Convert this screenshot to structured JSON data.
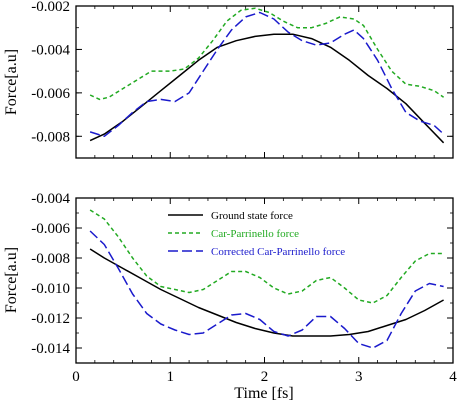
{
  "chart_data": [
    {
      "type": "line",
      "ylabel": "Force[a.u]",
      "xlim": [
        0,
        4
      ],
      "ylim": [
        -0.009,
        -0.002
      ],
      "yticks": [
        -0.008,
        -0.006,
        -0.004,
        -0.002
      ],
      "yticklabels": [
        "-0.008",
        "-0.006",
        "-0.004",
        "-0.002"
      ],
      "series": [
        {
          "key": "ground",
          "color": "#000000",
          "style": "solid",
          "x": [
            0.15,
            0.3,
            0.5,
            0.7,
            0.9,
            1.1,
            1.3,
            1.5,
            1.7,
            1.9,
            2.1,
            2.3,
            2.5,
            2.7,
            2.9,
            3.1,
            3.3,
            3.5,
            3.7,
            3.9
          ],
          "y": [
            -0.0082,
            -0.0079,
            -0.0073,
            -0.0066,
            -0.0059,
            -0.0052,
            -0.0045,
            -0.0039,
            -0.0036,
            -0.0034,
            -0.0033,
            -0.0033,
            -0.0035,
            -0.0039,
            -0.0045,
            -0.0052,
            -0.0058,
            -0.0065,
            -0.0074,
            -0.0083
          ]
        },
        {
          "key": "cp",
          "color": "#22aa22",
          "style": "short-dash",
          "x": [
            0.15,
            0.25,
            0.35,
            0.5,
            0.65,
            0.8,
            1.0,
            1.15,
            1.3,
            1.45,
            1.6,
            1.75,
            1.9,
            2.05,
            2.2,
            2.35,
            2.5,
            2.65,
            2.8,
            2.95,
            3.05,
            3.2,
            3.35,
            3.5,
            3.65,
            3.8,
            3.9
          ],
          "y": [
            -0.0061,
            -0.0063,
            -0.0062,
            -0.0058,
            -0.0054,
            -0.005,
            -0.005,
            -0.0049,
            -0.0044,
            -0.0036,
            -0.0027,
            -0.0022,
            -0.0021,
            -0.0023,
            -0.0027,
            -0.003,
            -0.003,
            -0.0028,
            -0.0025,
            -0.0026,
            -0.0029,
            -0.004,
            -0.005,
            -0.0056,
            -0.0057,
            -0.0059,
            -0.0062
          ]
        },
        {
          "key": "corr",
          "color": "#1a1acc",
          "style": "long-dash",
          "x": [
            0.15,
            0.3,
            0.45,
            0.6,
            0.75,
            0.9,
            1.05,
            1.2,
            1.35,
            1.5,
            1.65,
            1.8,
            1.95,
            2.1,
            2.25,
            2.4,
            2.55,
            2.7,
            2.85,
            2.95,
            3.05,
            3.2,
            3.35,
            3.5,
            3.65,
            3.8,
            3.9
          ],
          "y": [
            -0.0078,
            -0.008,
            -0.0075,
            -0.0069,
            -0.0064,
            -0.0063,
            -0.0064,
            -0.006,
            -0.005,
            -0.004,
            -0.0031,
            -0.0025,
            -0.0023,
            -0.0026,
            -0.0032,
            -0.0036,
            -0.0038,
            -0.0037,
            -0.0033,
            -0.0031,
            -0.0035,
            -0.0045,
            -0.0058,
            -0.0069,
            -0.0073,
            -0.0075,
            -0.0079
          ]
        }
      ]
    },
    {
      "type": "line",
      "xlabel": "Time [fs]",
      "ylabel": "Force[a.u]",
      "xlim": [
        0,
        4
      ],
      "xticks": [
        0,
        1,
        2,
        3,
        4
      ],
      "xticklabels": [
        "0",
        "1",
        "2",
        "3",
        "4"
      ],
      "ylim": [
        -0.015,
        -0.004
      ],
      "yticks": [
        -0.014,
        -0.012,
        -0.01,
        -0.008,
        -0.006,
        -0.004
      ],
      "yticklabels": [
        "-0.014",
        "-0.012",
        "-0.010",
        "-0.008",
        "-0.006",
        "-0.004"
      ],
      "legend_position": "top-center",
      "series": [
        {
          "key": "ground",
          "name": "Ground state force",
          "color": "#000000",
          "style": "solid",
          "x": [
            0.15,
            0.3,
            0.5,
            0.7,
            0.9,
            1.1,
            1.3,
            1.5,
            1.7,
            1.9,
            2.1,
            2.3,
            2.5,
            2.7,
            2.9,
            3.1,
            3.3,
            3.5,
            3.7,
            3.9
          ],
          "y": [
            -0.0074,
            -0.008,
            -0.0087,
            -0.0094,
            -0.0101,
            -0.0107,
            -0.0113,
            -0.0118,
            -0.0123,
            -0.0127,
            -0.013,
            -0.0132,
            -0.0132,
            -0.0132,
            -0.0131,
            -0.0129,
            -0.0125,
            -0.0121,
            -0.0115,
            -0.0108
          ]
        },
        {
          "key": "cp",
          "name": "Car-Parrinello force",
          "color": "#22aa22",
          "style": "short-dash",
          "x": [
            0.15,
            0.3,
            0.45,
            0.6,
            0.75,
            0.9,
            1.05,
            1.2,
            1.35,
            1.5,
            1.65,
            1.8,
            1.95,
            2.1,
            2.25,
            2.4,
            2.55,
            2.7,
            2.85,
            3.0,
            3.15,
            3.3,
            3.45,
            3.6,
            3.75,
            3.9
          ],
          "y": [
            -0.0048,
            -0.0054,
            -0.0066,
            -0.008,
            -0.0092,
            -0.0099,
            -0.0101,
            -0.0103,
            -0.0101,
            -0.0095,
            -0.0089,
            -0.0089,
            -0.0093,
            -0.01,
            -0.0104,
            -0.0102,
            -0.0095,
            -0.0093,
            -0.01,
            -0.0108,
            -0.011,
            -0.0105,
            -0.0093,
            -0.0082,
            -0.0077,
            -0.0077
          ]
        },
        {
          "key": "corr",
          "name": "Corrected Car-Parrinello force",
          "color": "#1a1acc",
          "style": "long-dash",
          "x": [
            0.15,
            0.3,
            0.45,
            0.6,
            0.75,
            0.9,
            1.05,
            1.2,
            1.35,
            1.5,
            1.65,
            1.8,
            1.95,
            2.1,
            2.25,
            2.4,
            2.55,
            2.7,
            2.85,
            3.0,
            3.15,
            3.3,
            3.45,
            3.6,
            3.75,
            3.9
          ],
          "y": [
            -0.0062,
            -0.0071,
            -0.0087,
            -0.0104,
            -0.0117,
            -0.0124,
            -0.0128,
            -0.0131,
            -0.013,
            -0.0124,
            -0.0118,
            -0.0117,
            -0.0121,
            -0.0129,
            -0.0132,
            -0.0128,
            -0.0119,
            -0.0119,
            -0.0127,
            -0.0137,
            -0.014,
            -0.0135,
            -0.0117,
            -0.0102,
            -0.0097,
            -0.0099
          ]
        }
      ]
    }
  ]
}
